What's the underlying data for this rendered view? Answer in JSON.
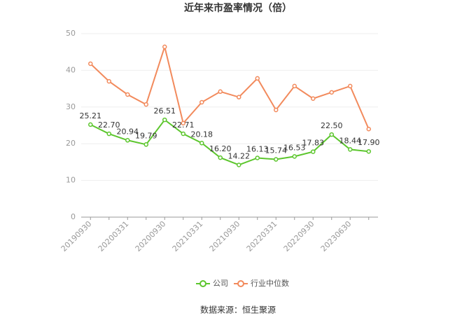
{
  "chart_data": {
    "type": "line",
    "title": "近年来市盈率情况（倍）",
    "categories": [
      "20190930",
      null,
      "20200331",
      null,
      "20200930",
      null,
      "20210331",
      null,
      "20210930",
      null,
      "20220331",
      null,
      "20220930",
      null,
      "20230630",
      null
    ],
    "series": [
      {
        "name": "公司",
        "color": "#5cc62d",
        "values": [
          25.21,
          22.7,
          20.94,
          19.79,
          26.51,
          22.71,
          20.18,
          16.2,
          14.22,
          16.13,
          15.74,
          16.53,
          17.83,
          22.5,
          18.44,
          17.9
        ],
        "value_labels": [
          "25.21",
          "22.70",
          "20.94",
          "19.79",
          "26.51",
          "22.71",
          "20.18",
          "16.20",
          "14.22",
          "16.13",
          "15.74",
          "16.53",
          "17.83",
          "22.50",
          "18.44",
          "17.90"
        ]
      },
      {
        "name": "行业中位数",
        "color": "#f28a5c",
        "values": [
          41.8,
          37.0,
          33.4,
          30.7,
          46.4,
          25.6,
          31.3,
          34.2,
          32.7,
          37.8,
          29.2,
          35.7,
          32.3,
          34.0,
          35.7,
          24.0
        ]
      }
    ],
    "ylim": [
      0,
      50
    ],
    "yticks": [
      0,
      10,
      20,
      30,
      40,
      50
    ],
    "grid": true,
    "legend": "bottom",
    "source": "数据来源：恒生聚源"
  }
}
